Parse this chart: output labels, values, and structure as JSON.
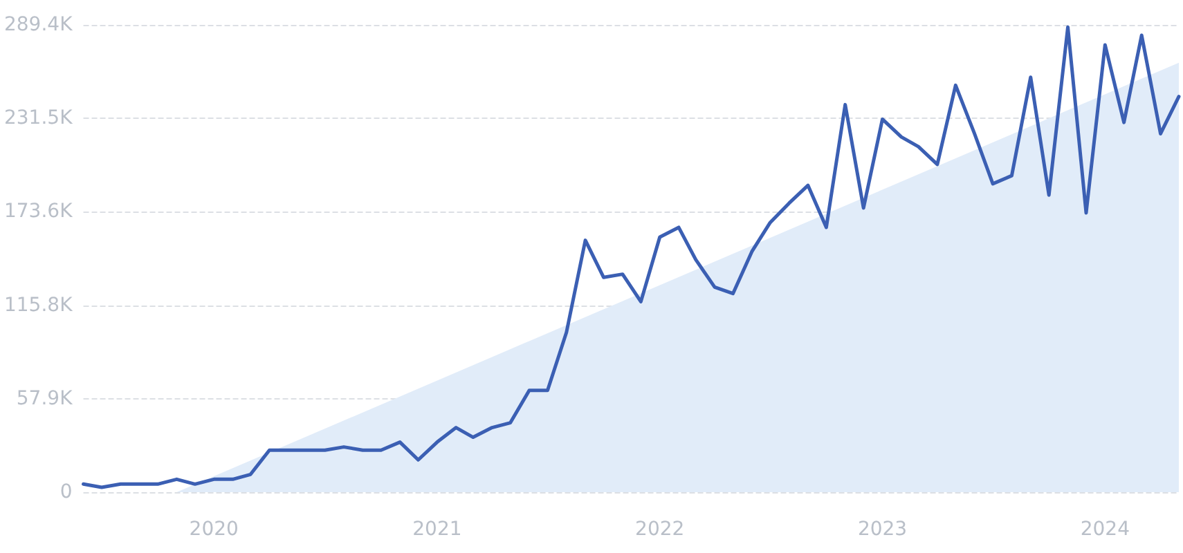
{
  "chart_data": {
    "type": "line",
    "x": [
      "2019-06",
      "2019-07",
      "2019-08",
      "2019-09",
      "2019-10",
      "2019-11",
      "2019-12",
      "2020-01",
      "2020-02",
      "2020-03",
      "2020-04",
      "2020-05",
      "2020-06",
      "2020-07",
      "2020-08",
      "2020-09",
      "2020-10",
      "2020-11",
      "2020-12",
      "2021-01",
      "2021-02",
      "2021-03",
      "2021-04",
      "2021-05",
      "2021-06",
      "2021-07",
      "2021-08",
      "2021-09",
      "2021-10",
      "2021-11",
      "2021-12",
      "2022-01",
      "2022-02",
      "2022-03",
      "2022-04",
      "2022-05",
      "2022-06",
      "2022-07",
      "2022-08",
      "2022-09",
      "2022-10",
      "2022-11",
      "2022-12",
      "2023-01",
      "2023-02",
      "2023-03",
      "2023-04",
      "2023-05",
      "2023-06",
      "2023-07",
      "2023-08",
      "2023-09",
      "2023-10",
      "2023-11",
      "2023-12",
      "2024-01",
      "2024-02",
      "2024-03",
      "2024-04",
      "2024-05"
    ],
    "series": [
      {
        "type": "area",
        "color": "#e1ecf9",
        "x": [
          "2019-11",
          "2024-05"
        ],
        "values": [
          0,
          266000
        ]
      },
      {
        "color": "#3b5fb3",
        "values": [
          5000,
          3000,
          5000,
          5000,
          5000,
          8000,
          5000,
          8000,
          8000,
          11000,
          26000,
          26000,
          26000,
          26000,
          28000,
          26000,
          26000,
          31000,
          20000,
          31000,
          40000,
          34000,
          40000,
          43000,
          63000,
          63000,
          99000,
          156000,
          133000,
          135000,
          118000,
          158000,
          164000,
          144000,
          127000,
          123000,
          149000,
          167000,
          179000,
          190000,
          164000,
          240000,
          176000,
          231000,
          220000,
          214000,
          203000,
          252000,
          222000,
          191000,
          196000,
          257000,
          184000,
          288000,
          173000,
          277000,
          229000,
          283000,
          222000,
          245000
        ]
      }
    ],
    "xlim": [
      "2019-06",
      "2024-05"
    ],
    "xticks": [
      "2020",
      "2021",
      "2022",
      "2023",
      "2024"
    ],
    "ylim": [
      0,
      289400
    ],
    "yticks": [
      0,
      {
        "value": 57900,
        "label": "57.9K"
      },
      {
        "value": 115800,
        "label": "115.8K"
      },
      {
        "value": 173600,
        "label": "173.6K"
      },
      {
        "value": 231500,
        "label": "231.5K"
      },
      {
        "value": 289400,
        "label": "289.4K"
      }
    ],
    "grid": "y",
    "marker": "none",
    "line_style": "solid"
  }
}
